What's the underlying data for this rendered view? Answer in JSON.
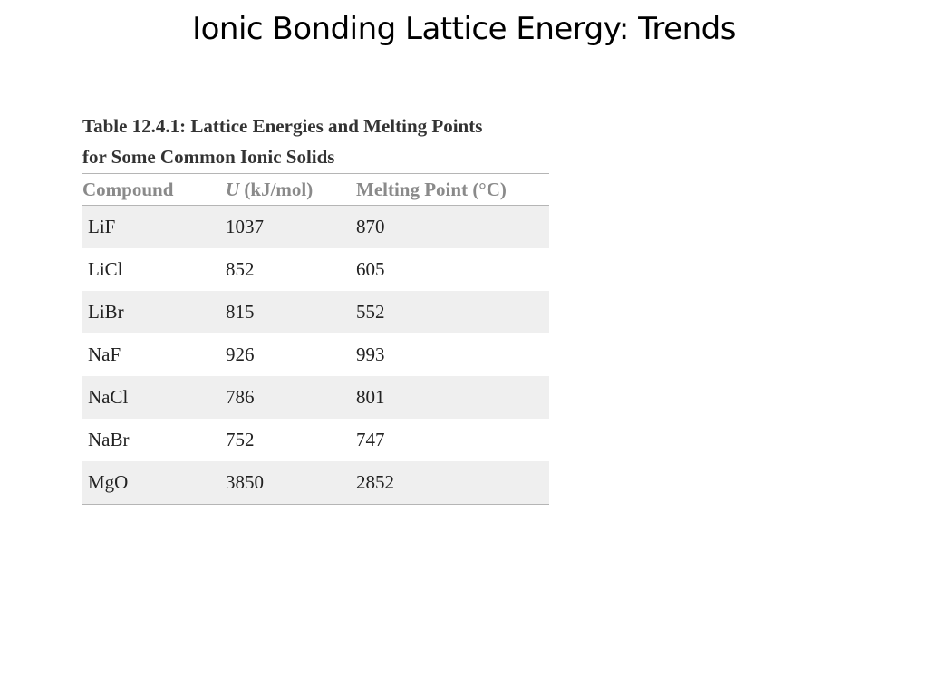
{
  "slide": {
    "title": "Ionic Bonding Lattice Energy: Trends"
  },
  "table": {
    "caption_line1": "Table 12.4.1: Lattice Energies and Melting Points",
    "caption_line2": "for Some Common Ionic Solids",
    "headers": {
      "compound": "Compound",
      "u_symbol": "U",
      "u_unit": " (kJ/mol)",
      "melting_point": "Melting Point (°C)"
    },
    "rows": [
      {
        "compound": "LiF",
        "u": "1037",
        "mp": "870"
      },
      {
        "compound": "LiCl",
        "u": "852",
        "mp": "605"
      },
      {
        "compound": "LiBr",
        "u": "815",
        "mp": "552"
      },
      {
        "compound": "NaF",
        "u": "926",
        "mp": "993"
      },
      {
        "compound": "NaCl",
        "u": "786",
        "mp": "801"
      },
      {
        "compound": "NaBr",
        "u": "752",
        "mp": "747"
      },
      {
        "compound": "MgO",
        "u": "3850",
        "mp": "2852"
      }
    ],
    "shaded_row_color": "#efefef"
  }
}
